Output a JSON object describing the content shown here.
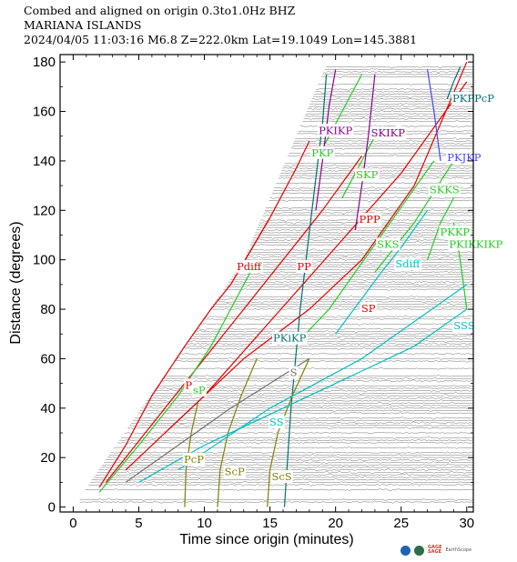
{
  "header": {
    "line1": "Combed and aligned on origin  0.3to1.0Hz  BHZ",
    "line2": "MARIANA ISLANDS",
    "line3": "2024/04/05  11:03:16  M6.8  Z=222.0km Lat=19.1049 Lon=145.3881"
  },
  "chart_data": {
    "type": "line",
    "title": "",
    "xlabel": "Time since origin (minutes)",
    "ylabel": "Distance (degrees)",
    "xlim": [
      -1,
      30.5
    ],
    "ylim": [
      -2,
      183
    ],
    "xticks": [
      0,
      5,
      10,
      15,
      20,
      25,
      30
    ],
    "yticks": [
      0,
      20,
      40,
      60,
      80,
      100,
      120,
      140,
      160,
      180
    ],
    "grid": false,
    "series": [
      {
        "name": "P",
        "color": "#e00000",
        "points": [
          [
            2,
            8
          ],
          [
            4,
            25
          ],
          [
            6,
            45
          ],
          [
            8.5,
            65
          ],
          [
            10.5,
            80
          ],
          [
            12,
            90
          ],
          [
            13,
            99
          ],
          [
            14,
            108
          ],
          [
            15,
            117
          ],
          [
            16,
            127
          ],
          [
            17,
            137
          ],
          [
            18,
            148
          ]
        ]
      },
      {
        "name": "Pdiff",
        "color": "#e00000",
        "points": [
          [
            13,
            99
          ],
          [
            15,
            117
          ]
        ]
      },
      {
        "name": "PP",
        "color": "#e00000",
        "points": [
          [
            2.5,
            10
          ],
          [
            7,
            40
          ],
          [
            10,
            60
          ],
          [
            13,
            80
          ],
          [
            16,
            100
          ],
          [
            19,
            120
          ],
          [
            22,
            142
          ]
        ]
      },
      {
        "name": "PPP",
        "color": "#e00000",
        "points": [
          [
            4,
            15
          ],
          [
            10,
            45
          ],
          [
            15,
            75
          ],
          [
            20,
            105
          ],
          [
            25,
            135
          ],
          [
            30,
            172
          ]
        ]
      },
      {
        "name": "SP",
        "color": "#e00000",
        "points": [
          [
            7,
            30
          ],
          [
            13,
            60
          ],
          [
            18,
            80
          ],
          [
            22,
            100
          ],
          [
            26,
            130
          ],
          [
            30,
            180
          ]
        ]
      },
      {
        "name": "sP",
        "color": "#22cc22",
        "points": [
          [
            2,
            6
          ],
          [
            5,
            25
          ],
          [
            8,
            45
          ],
          [
            10.5,
            65
          ],
          [
            12.5,
            85
          ],
          [
            14,
            100
          ]
        ]
      },
      {
        "name": "PKP",
        "color": "#22cc22",
        "points": [
          [
            19,
            145
          ],
          [
            20.5,
            160
          ],
          [
            22,
            175
          ]
        ]
      },
      {
        "name": "SKP",
        "color": "#22cc22",
        "points": [
          [
            20.5,
            125
          ],
          [
            22,
            140
          ],
          [
            23,
            150
          ]
        ]
      },
      {
        "name": "SKS",
        "color": "#22cc22",
        "points": [
          [
            17,
            66
          ],
          [
            19.5,
            80
          ],
          [
            21.5,
            95
          ],
          [
            23.5,
            110
          ],
          [
            25.5,
            125
          ],
          [
            27.5,
            140
          ]
        ]
      },
      {
        "name": "SKKS",
        "color": "#22cc22",
        "points": [
          [
            23,
            95
          ],
          [
            26,
            115
          ],
          [
            29,
            140
          ]
        ]
      },
      {
        "name": "PKKP",
        "color": "#22cc22",
        "points": [
          [
            27,
            100
          ],
          [
            28,
            115
          ],
          [
            29,
            125
          ]
        ]
      },
      {
        "name": "PKIKKIKP",
        "color": "#22cc22",
        "points": [
          [
            29,
            115
          ],
          [
            29.5,
            100
          ],
          [
            30,
            80
          ]
        ]
      },
      {
        "name": "PKiKP",
        "color": "#007070",
        "points": [
          [
            16.1,
            0
          ],
          [
            16.6,
            40
          ],
          [
            17.3,
            80
          ],
          [
            18.2,
            120
          ],
          [
            19,
            155
          ],
          [
            19.3,
            175
          ]
        ]
      },
      {
        "name": "PKPPcP",
        "color": "#007070",
        "points": [
          [
            28.5,
            165
          ],
          [
            29,
            172
          ],
          [
            29.5,
            178
          ]
        ]
      },
      {
        "name": "PKIKP",
        "color": "#8b008b",
        "points": [
          [
            18.5,
            120
          ],
          [
            19,
            140
          ],
          [
            19.5,
            162
          ],
          [
            20,
            177
          ]
        ]
      },
      {
        "name": "SKIKP",
        "color": "#8b008b",
        "points": [
          [
            21.5,
            112
          ],
          [
            22,
            130
          ],
          [
            22.5,
            150
          ],
          [
            23,
            175
          ]
        ]
      },
      {
        "name": "PKJKP",
        "color": "#4444ff",
        "points": [
          [
            27,
            177
          ],
          [
            27.5,
            160
          ],
          [
            28,
            140
          ]
        ]
      },
      {
        "name": "PcP",
        "color": "#808000",
        "points": [
          [
            8.5,
            0
          ],
          [
            8.6,
            15
          ],
          [
            9,
            30
          ],
          [
            9.5,
            42
          ]
        ]
      },
      {
        "name": "ScP",
        "color": "#808000",
        "points": [
          [
            11,
            0
          ],
          [
            11.2,
            15
          ],
          [
            11.8,
            30
          ],
          [
            12.8,
            45
          ],
          [
            14,
            60
          ]
        ]
      },
      {
        "name": "ScS",
        "color": "#808000",
        "points": [
          [
            14.8,
            0
          ],
          [
            15,
            15
          ],
          [
            15.6,
            30
          ],
          [
            16.7,
            45
          ],
          [
            18,
            60
          ]
        ]
      },
      {
        "name": "SS",
        "color": "#00c0c0",
        "points": [
          [
            5,
            10
          ],
          [
            10,
            25
          ],
          [
            16,
            40
          ],
          [
            22,
            55
          ],
          [
            26,
            65
          ],
          [
            30,
            80
          ]
        ]
      },
      {
        "name": "Sdiff",
        "color": "#00c0c0",
        "points": [
          [
            20,
            70
          ],
          [
            23.5,
            95
          ],
          [
            25,
            105
          ],
          [
            27,
            120
          ]
        ]
      },
      {
        "name": "SSS",
        "color": "#00c0c0",
        "points": [
          [
            8,
            15
          ],
          [
            15,
            40
          ],
          [
            22,
            60
          ],
          [
            30,
            90
          ]
        ]
      },
      {
        "name": "S",
        "color": "#707070",
        "points": [
          [
            4,
            10
          ],
          [
            8,
            25
          ],
          [
            12,
            40
          ],
          [
            16.5,
            55
          ],
          [
            18,
            60
          ]
        ]
      }
    ],
    "labels": [
      {
        "text": "P",
        "x": 8.8,
        "y": 49,
        "color": "#e00000"
      },
      {
        "text": "sP",
        "x": 9.6,
        "y": 47,
        "color": "#22cc22"
      },
      {
        "text": "Pdiff",
        "x": 13.4,
        "y": 97,
        "color": "#e00000"
      },
      {
        "text": "PP",
        "x": 17.6,
        "y": 97,
        "color": "#e00000"
      },
      {
        "text": "PPP",
        "x": 22.6,
        "y": 116,
        "color": "#e00000"
      },
      {
        "text": "SP",
        "x": 22.5,
        "y": 80,
        "color": "#e00000"
      },
      {
        "text": "PKIKP",
        "x": 20,
        "y": 152,
        "color": "#8b008b"
      },
      {
        "text": "SKIKP",
        "x": 24,
        "y": 151,
        "color": "#8b008b"
      },
      {
        "text": "PKP",
        "x": 19,
        "y": 143,
        "color": "#22cc22"
      },
      {
        "text": "SKP",
        "x": 22.4,
        "y": 134,
        "color": "#22cc22"
      },
      {
        "text": "SKS",
        "x": 24,
        "y": 106,
        "color": "#22cc22"
      },
      {
        "text": "Sdiff",
        "x": 25.5,
        "y": 98,
        "color": "#00c0c0"
      },
      {
        "text": "SKKS",
        "x": 28.3,
        "y": 128,
        "color": "#22cc22"
      },
      {
        "text": "PKKP",
        "x": 29.1,
        "y": 111,
        "color": "#22cc22"
      },
      {
        "text": "PKIKKIKP",
        "x": 30.7,
        "y": 106,
        "color": "#22cc22"
      },
      {
        "text": "PKPPcP",
        "x": 30.5,
        "y": 165,
        "color": "#007070"
      },
      {
        "text": "PKJKP",
        "x": 29.8,
        "y": 141,
        "color": "#4444ff"
      },
      {
        "text": "PKiKP",
        "x": 16.5,
        "y": 68,
        "color": "#007070"
      },
      {
        "text": "SSS",
        "x": 29.8,
        "y": 73,
        "color": "#00c0c0"
      },
      {
        "text": "SS",
        "x": 15.5,
        "y": 34,
        "color": "#00c0c0"
      },
      {
        "text": "S",
        "x": 16.8,
        "y": 54,
        "color": "#707070"
      },
      {
        "text": "PcP",
        "x": 9.2,
        "y": 19,
        "color": "#808000"
      },
      {
        "text": "ScP",
        "x": 12.3,
        "y": 14,
        "color": "#808000"
      },
      {
        "text": "ScS",
        "x": 15.9,
        "y": 12,
        "color": "#808000"
      }
    ]
  },
  "logos": {
    "gage": "GAGE",
    "sage": "SAGE",
    "other": "EarthScope"
  }
}
